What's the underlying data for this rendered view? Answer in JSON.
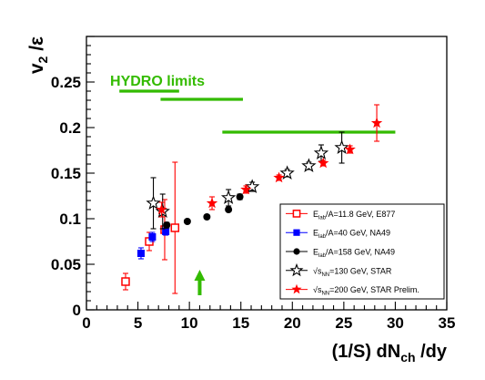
{
  "chart_data": {
    "type": "scatter",
    "xlim": [
      0,
      35
    ],
    "ylim": [
      0,
      0.3
    ],
    "x_ticks": [
      0,
      5,
      10,
      15,
      20,
      25,
      30,
      35
    ],
    "y_ticks": [
      0,
      0.05,
      0.1,
      0.15,
      0.2,
      0.25
    ],
    "x_tick_labels": [
      "0",
      "5",
      "10",
      "15",
      "20",
      "25",
      "30",
      "35"
    ],
    "y_tick_labels": [
      "0",
      "0.05",
      "0.1",
      "0.15",
      "0.2",
      "0.25"
    ],
    "xlabel": {
      "main": "(1/S) dN",
      "sub": "ch",
      "tail": " /dy"
    },
    "ylabel": {
      "main": "v",
      "sub": "2",
      "tail": " /ε"
    },
    "legend_placement": "center-right",
    "series": [
      {
        "name": "E_lab/A=11.8 GeV, E877",
        "label": {
          "pre": "E",
          "sub": "lab",
          "post": "/A=11.8 GeV, E877"
        },
        "marker": "open-square",
        "color": "#ff0000",
        "x": [
          3.8,
          6.1,
          7.6,
          8.6
        ],
        "y": [
          0.031,
          0.075,
          0.088,
          0.09
        ],
        "err": [
          0.009,
          0.01,
          0.033,
          0.072
        ]
      },
      {
        "name": "E_lab/A=40 GeV, NA49",
        "label": {
          "pre": "E",
          "sub": "lab",
          "post": "/A=40 GeV, NA49"
        },
        "marker": "filled-square",
        "color": "#0000ff",
        "x": [
          5.3,
          6.4,
          7.7
        ],
        "y": [
          0.062,
          0.08,
          0.086
        ],
        "err": [
          0.006,
          0.005,
          0.004
        ]
      },
      {
        "name": "E_lab/A=158 GeV, NA49",
        "label": {
          "pre": "E",
          "sub": "lab",
          "post": "/A=158 GeV, NA49"
        },
        "marker": "filled-circle",
        "color": "#000000",
        "x": [
          7.8,
          9.8,
          11.7,
          13.8,
          14.9
        ],
        "y": [
          0.093,
          0.097,
          0.102,
          0.11,
          0.124
        ],
        "err": [
          0.003,
          0.002,
          0.002,
          0.002,
          0.003
        ]
      },
      {
        "name": "√s_NN=130 GeV, STAR",
        "label": {
          "pre": "√s",
          "sub": "NN",
          "post": "=130 GeV, STAR"
        },
        "marker": "open-star",
        "color": "#000000",
        "x": [
          6.5,
          7.4,
          13.8,
          16.1,
          19.5,
          21.6,
          22.8,
          24.8
        ],
        "y": [
          0.117,
          0.108,
          0.123,
          0.135,
          0.15,
          0.158,
          0.172,
          0.178
        ],
        "err": [
          0.028,
          0.019,
          0.009,
          0.005,
          0.004,
          0.004,
          0.009,
          0.017
        ]
      },
      {
        "name": "√s_NN=200 GeV, STAR Prelim.",
        "label": {
          "pre": "√s",
          "sub": "NN",
          "post": "=200 GeV, STAR Prelim."
        },
        "marker": "filled-star",
        "color": "#ff0000",
        "x": [
          7.3,
          12.2,
          15.5,
          18.7,
          23.0,
          25.6,
          28.2
        ],
        "y": [
          0.11,
          0.117,
          0.132,
          0.145,
          0.161,
          0.176,
          0.205
        ],
        "err": [
          0.008,
          0.007,
          0.004,
          0.003,
          0.003,
          0.004,
          0.02
        ]
      }
    ],
    "annotations": {
      "hydro_label": "HYDRO  limits",
      "hydro_color": "#33bb00",
      "hydro_limits": [
        {
          "x": [
            3.2,
            9.0
          ],
          "y": 0.24
        },
        {
          "x": [
            7.2,
            15.2
          ],
          "y": 0.231
        },
        {
          "x": [
            13.2,
            30.0
          ],
          "y": 0.195
        }
      ],
      "arrow": {
        "x": 11.0,
        "y_from": 0.016,
        "y_to": 0.04,
        "color": "#33bb00"
      }
    }
  }
}
